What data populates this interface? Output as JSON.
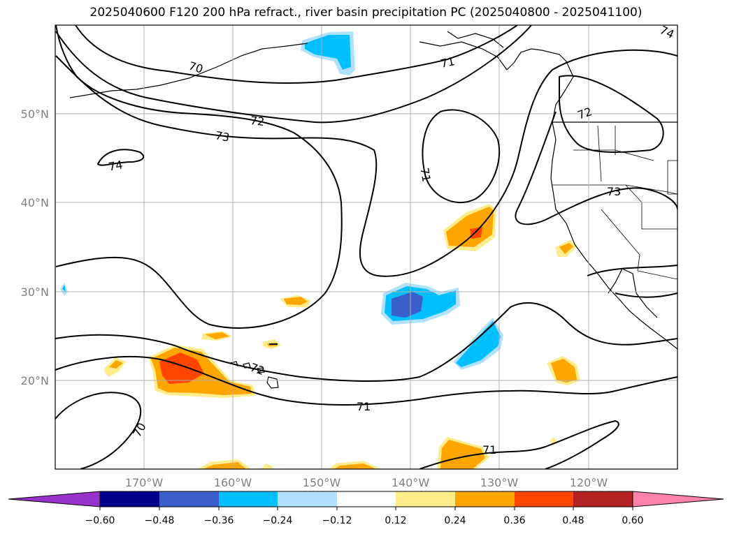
{
  "title": "2025040600 F120 200 hPa refract., river basin precipitation PC (2025040800 - 2025041100)",
  "map": {
    "lat_labels": [
      "50°N",
      "40°N",
      "30°N",
      "20°N"
    ],
    "lon_labels": [
      "170°W",
      "160°W",
      "150°W",
      "140°W",
      "130°W",
      "120°W"
    ],
    "grid": true,
    "contour_labels": [
      "70",
      "71",
      "72",
      "73",
      "74",
      "71",
      "72",
      "73",
      "74",
      "71",
      "72",
      "71",
      "70",
      "71",
      "70"
    ]
  },
  "colorbar": {
    "ticks": [
      "−0.60",
      "−0.48",
      "−0.36",
      "−0.24",
      "−0.12",
      "0.12",
      "0.24",
      "0.36",
      "0.48",
      "0.60"
    ],
    "colors": [
      "#9932cc",
      "#00008b",
      "#3a5fcd",
      "#00bfff",
      "#b0e2ff",
      "#ffffff",
      "#ffec8b",
      "#ffa500",
      "#ff4500",
      "#b22222",
      "#ff82ab"
    ],
    "extend": "both"
  },
  "colors": {
    "grid": "#b0b0b0",
    "axis_label": "#808080",
    "contour": "#000000"
  }
}
